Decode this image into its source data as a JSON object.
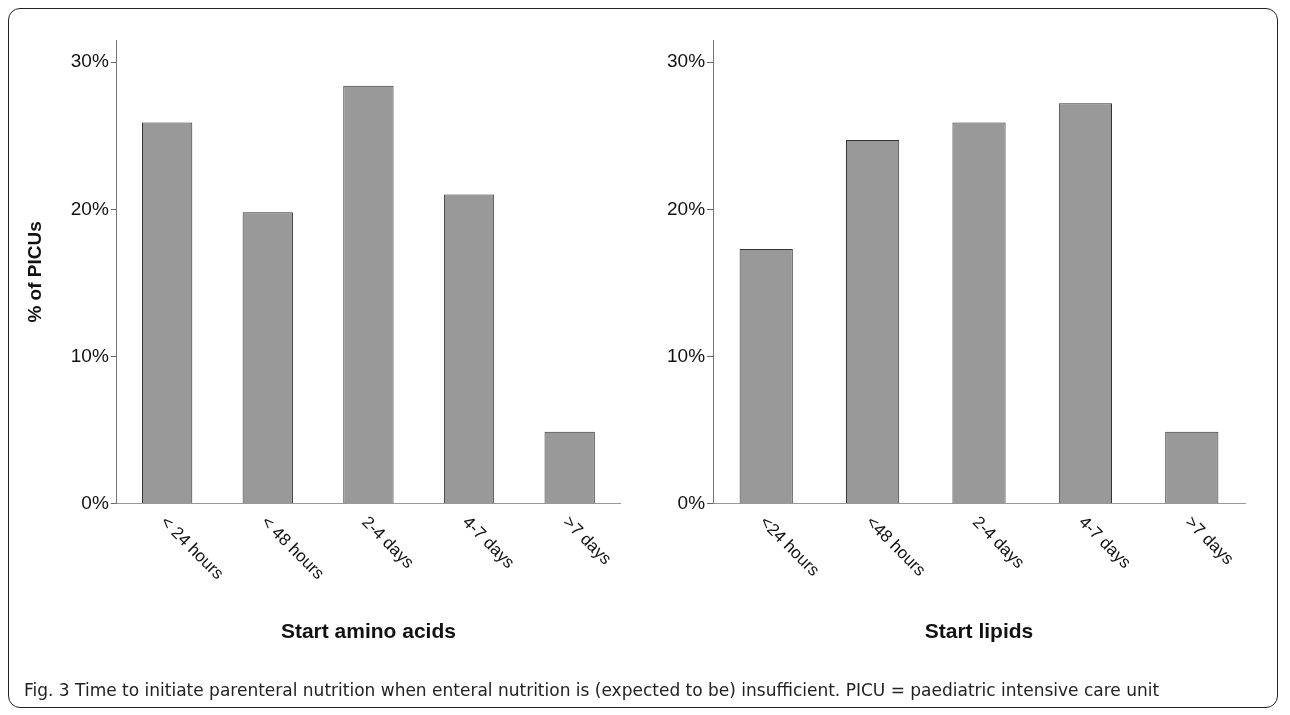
{
  "chart_data": [
    {
      "type": "bar",
      "ylabel": "% of PICUs",
      "xlabel": "Start amino acids",
      "categories": [
        "< 24 hours",
        "< 48 hours",
        "2-4 days",
        "4-7 days",
        ">7 days"
      ],
      "values": [
        25.9,
        19.8,
        28.4,
        21.0,
        4.9
      ],
      "color": "#999999",
      "ylim": [
        0,
        31.5
      ],
      "yticks": [
        {
          "value": 0,
          "label": "0%"
        },
        {
          "value": 10,
          "label": "10%"
        },
        {
          "value": 20,
          "label": "20%"
        },
        {
          "value": 30,
          "label": "30%"
        }
      ],
      "grid": false,
      "legend": false,
      "annotations": [
        "Fig. 3 Time to initiate parenteral nutrition when enteral nutrition is (expected to be) insufficient. PICU = paediatric intensive care unit"
      ]
    },
    {
      "type": "bar",
      "xlabel": "Start lipids",
      "categories": [
        "<24 hours",
        "<48 hours",
        "2-4 days",
        "4-7 days",
        ">7 days"
      ],
      "values": [
        17.3,
        24.7,
        25.9,
        27.2,
        4.9
      ],
      "color": "#999999",
      "ylim": [
        0,
        31.5
      ],
      "yticks": [
        {
          "value": 0,
          "label": "0%"
        },
        {
          "value": 10,
          "label": "10%"
        },
        {
          "value": 20,
          "label": "20%"
        },
        {
          "value": 30,
          "label": "30%"
        }
      ],
      "grid": false,
      "legend": false
    }
  ]
}
